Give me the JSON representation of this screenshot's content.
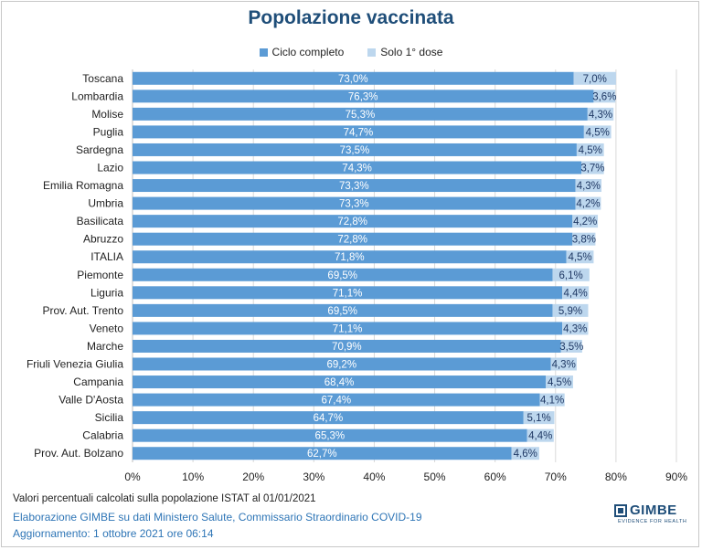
{
  "chart_data": {
    "type": "bar",
    "orientation": "horizontal",
    "stacked": true,
    "title": "Popolazione vaccinata",
    "legend_position": "top",
    "categories": [
      "Toscana",
      "Lombardia",
      "Molise",
      "Puglia",
      "Sardegna",
      "Lazio",
      "Emilia Romagna",
      "Umbria",
      "Basilicata",
      "Abruzzo",
      "ITALIA",
      "Piemonte",
      "Liguria",
      "Prov. Aut. Trento",
      "Veneto",
      "Marche",
      "Friuli Venezia Giulia",
      "Campania",
      "Valle D'Aosta",
      "Sicilia",
      "Calabria",
      "Prov. Aut. Bolzano"
    ],
    "series": [
      {
        "name": "Ciclo completo",
        "color": "#5b9bd5",
        "values": [
          73.0,
          76.3,
          75.3,
          74.7,
          73.5,
          74.3,
          73.3,
          73.3,
          72.8,
          72.8,
          71.8,
          69.5,
          71.1,
          69.5,
          71.1,
          70.9,
          69.2,
          68.4,
          67.4,
          64.7,
          65.3,
          62.7
        ],
        "labels": [
          "73,0%",
          "76,3%",
          "75,3%",
          "74,7%",
          "73,5%",
          "74,3%",
          "73,3%",
          "73,3%",
          "72,8%",
          "72,8%",
          "71,8%",
          "69,5%",
          "71,1%",
          "69,5%",
          "71,1%",
          "70,9%",
          "69,2%",
          "68,4%",
          "67,4%",
          "64,7%",
          "65,3%",
          "62,7%"
        ]
      },
      {
        "name": "Solo 1° dose",
        "color": "#bdd7ee",
        "values": [
          7.0,
          3.6,
          4.3,
          4.5,
          4.5,
          3.7,
          4.3,
          4.2,
          4.2,
          3.8,
          4.5,
          6.1,
          4.4,
          5.9,
          4.3,
          3.5,
          4.3,
          4.5,
          4.1,
          5.1,
          4.4,
          4.6
        ],
        "labels": [
          "7,0%",
          "3,6%",
          "4,3%",
          "4,5%",
          "4,5%",
          "3,7%",
          "4,3%",
          "4,2%",
          "4,2%",
          "3,8%",
          "4,5%",
          "6,1%",
          "4,4%",
          "5,9%",
          "4,3%",
          "3,5%",
          "4,3%",
          "4,5%",
          "4,1%",
          "5,1%",
          "4,4%",
          "4,6%"
        ]
      }
    ],
    "xlim": [
      0,
      90
    ],
    "xticks": [
      0,
      10,
      20,
      30,
      40,
      50,
      60,
      70,
      80,
      90
    ],
    "xtick_labels": [
      "0%",
      "10%",
      "20%",
      "30%",
      "40%",
      "50%",
      "60%",
      "70%",
      "80%",
      "90%"
    ],
    "grid": "vertical"
  },
  "footer": {
    "note": "Valori percentuali calcolati sulla popolazione ISTAT al 01/01/2021",
    "source": "Elaborazione GIMBE su dati Ministero Salute, Commissario Straordinario COVID-19",
    "update": "Aggiornamento: 1 ottobre 2021 ore 06:14"
  },
  "logo": {
    "name": "GIMBE",
    "tagline": "EVIDENCE FOR HEALTH"
  }
}
